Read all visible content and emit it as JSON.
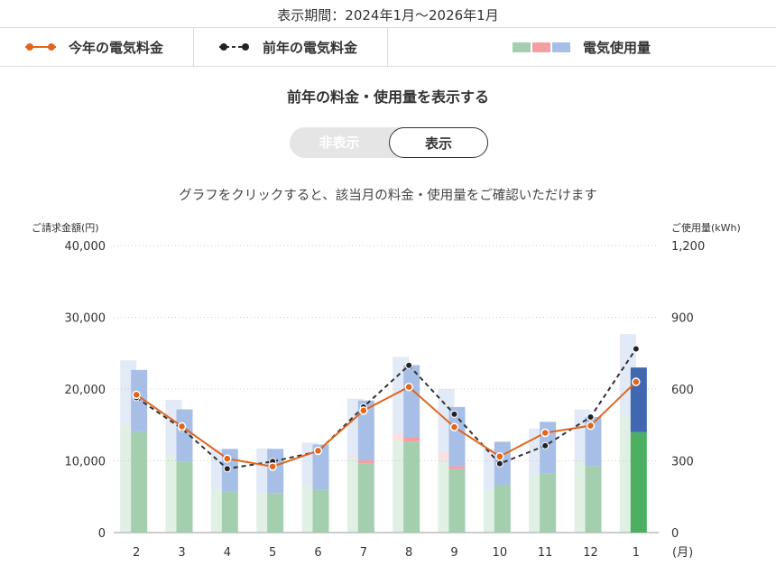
{
  "period_text": "表示期間：2024年1月～2026年1月",
  "legend": {
    "this_year_label": "今年の電気料金",
    "last_year_label": "前年の電気料金",
    "usage_label": "電気使用量"
  },
  "toggle": {
    "title": "前年の料金・使用量を表示する",
    "off_label": "非表示",
    "on_label": "表示",
    "selected": "表示"
  },
  "hint_text": "グラフをクリックすると、該当月の料金・使用量をご確認いただけます",
  "colors": {
    "this_year_line": "#e0661c",
    "last_year_line": "#333333",
    "usage_green": "#a3cfae",
    "usage_pink": "#f4a0a3",
    "usage_blue": "#a7bfe7",
    "current_green": "#4caf62",
    "current_blue": "#3f68b0"
  },
  "chart_data": {
    "type": "bar",
    "left_axis_title": "ご請求金額(円)",
    "right_axis_title": "ご使用量(kWh)",
    "x_unit_label": "(月)",
    "categories": [
      "2",
      "3",
      "4",
      "5",
      "6",
      "7",
      "8",
      "9",
      "10",
      "11",
      "12",
      "1"
    ],
    "left_ticks": [
      "0",
      "10,000",
      "20,000",
      "30,000",
      "40,000"
    ],
    "right_ticks": [
      "0",
      "300",
      "600",
      "900",
      "1,200"
    ],
    "ylim_left": [
      0,
      40000
    ],
    "ylim_right": [
      0,
      1200
    ],
    "grid": true,
    "usage_this_year": {
      "green": [
        420,
        295,
        172,
        165,
        178,
        290,
        380,
        265,
        200,
        248,
        278,
        420
      ],
      "pink": [
        0,
        0,
        0,
        0,
        0,
        12,
        20,
        12,
        0,
        0,
        0,
        0
      ],
      "blue": [
        260,
        220,
        178,
        185,
        190,
        250,
        300,
        248,
        180,
        215,
        205,
        270
      ]
    },
    "usage_last_year": {
      "green": [
        450,
        325,
        180,
        162,
        196,
        315,
        385,
        300,
        180,
        240,
        300,
        490
      ],
      "pink": [
        0,
        0,
        0,
        0,
        0,
        10,
        30,
        35,
        0,
        0,
        0,
        0
      ],
      "blue": [
        270,
        230,
        170,
        190,
        180,
        235,
        320,
        265,
        170,
        195,
        215,
        340
      ]
    },
    "series": [
      {
        "name": "今年の電気料金",
        "values": [
          19200,
          14800,
          10300,
          9200,
          11400,
          17000,
          20300,
          14700,
          10600,
          13900,
          14900,
          21000
        ]
      },
      {
        "name": "前年の電気料金",
        "values": [
          18800,
          14500,
          8900,
          9900,
          11300,
          17500,
          23300,
          16500,
          9600,
          12100,
          16100,
          25600
        ]
      }
    ]
  }
}
